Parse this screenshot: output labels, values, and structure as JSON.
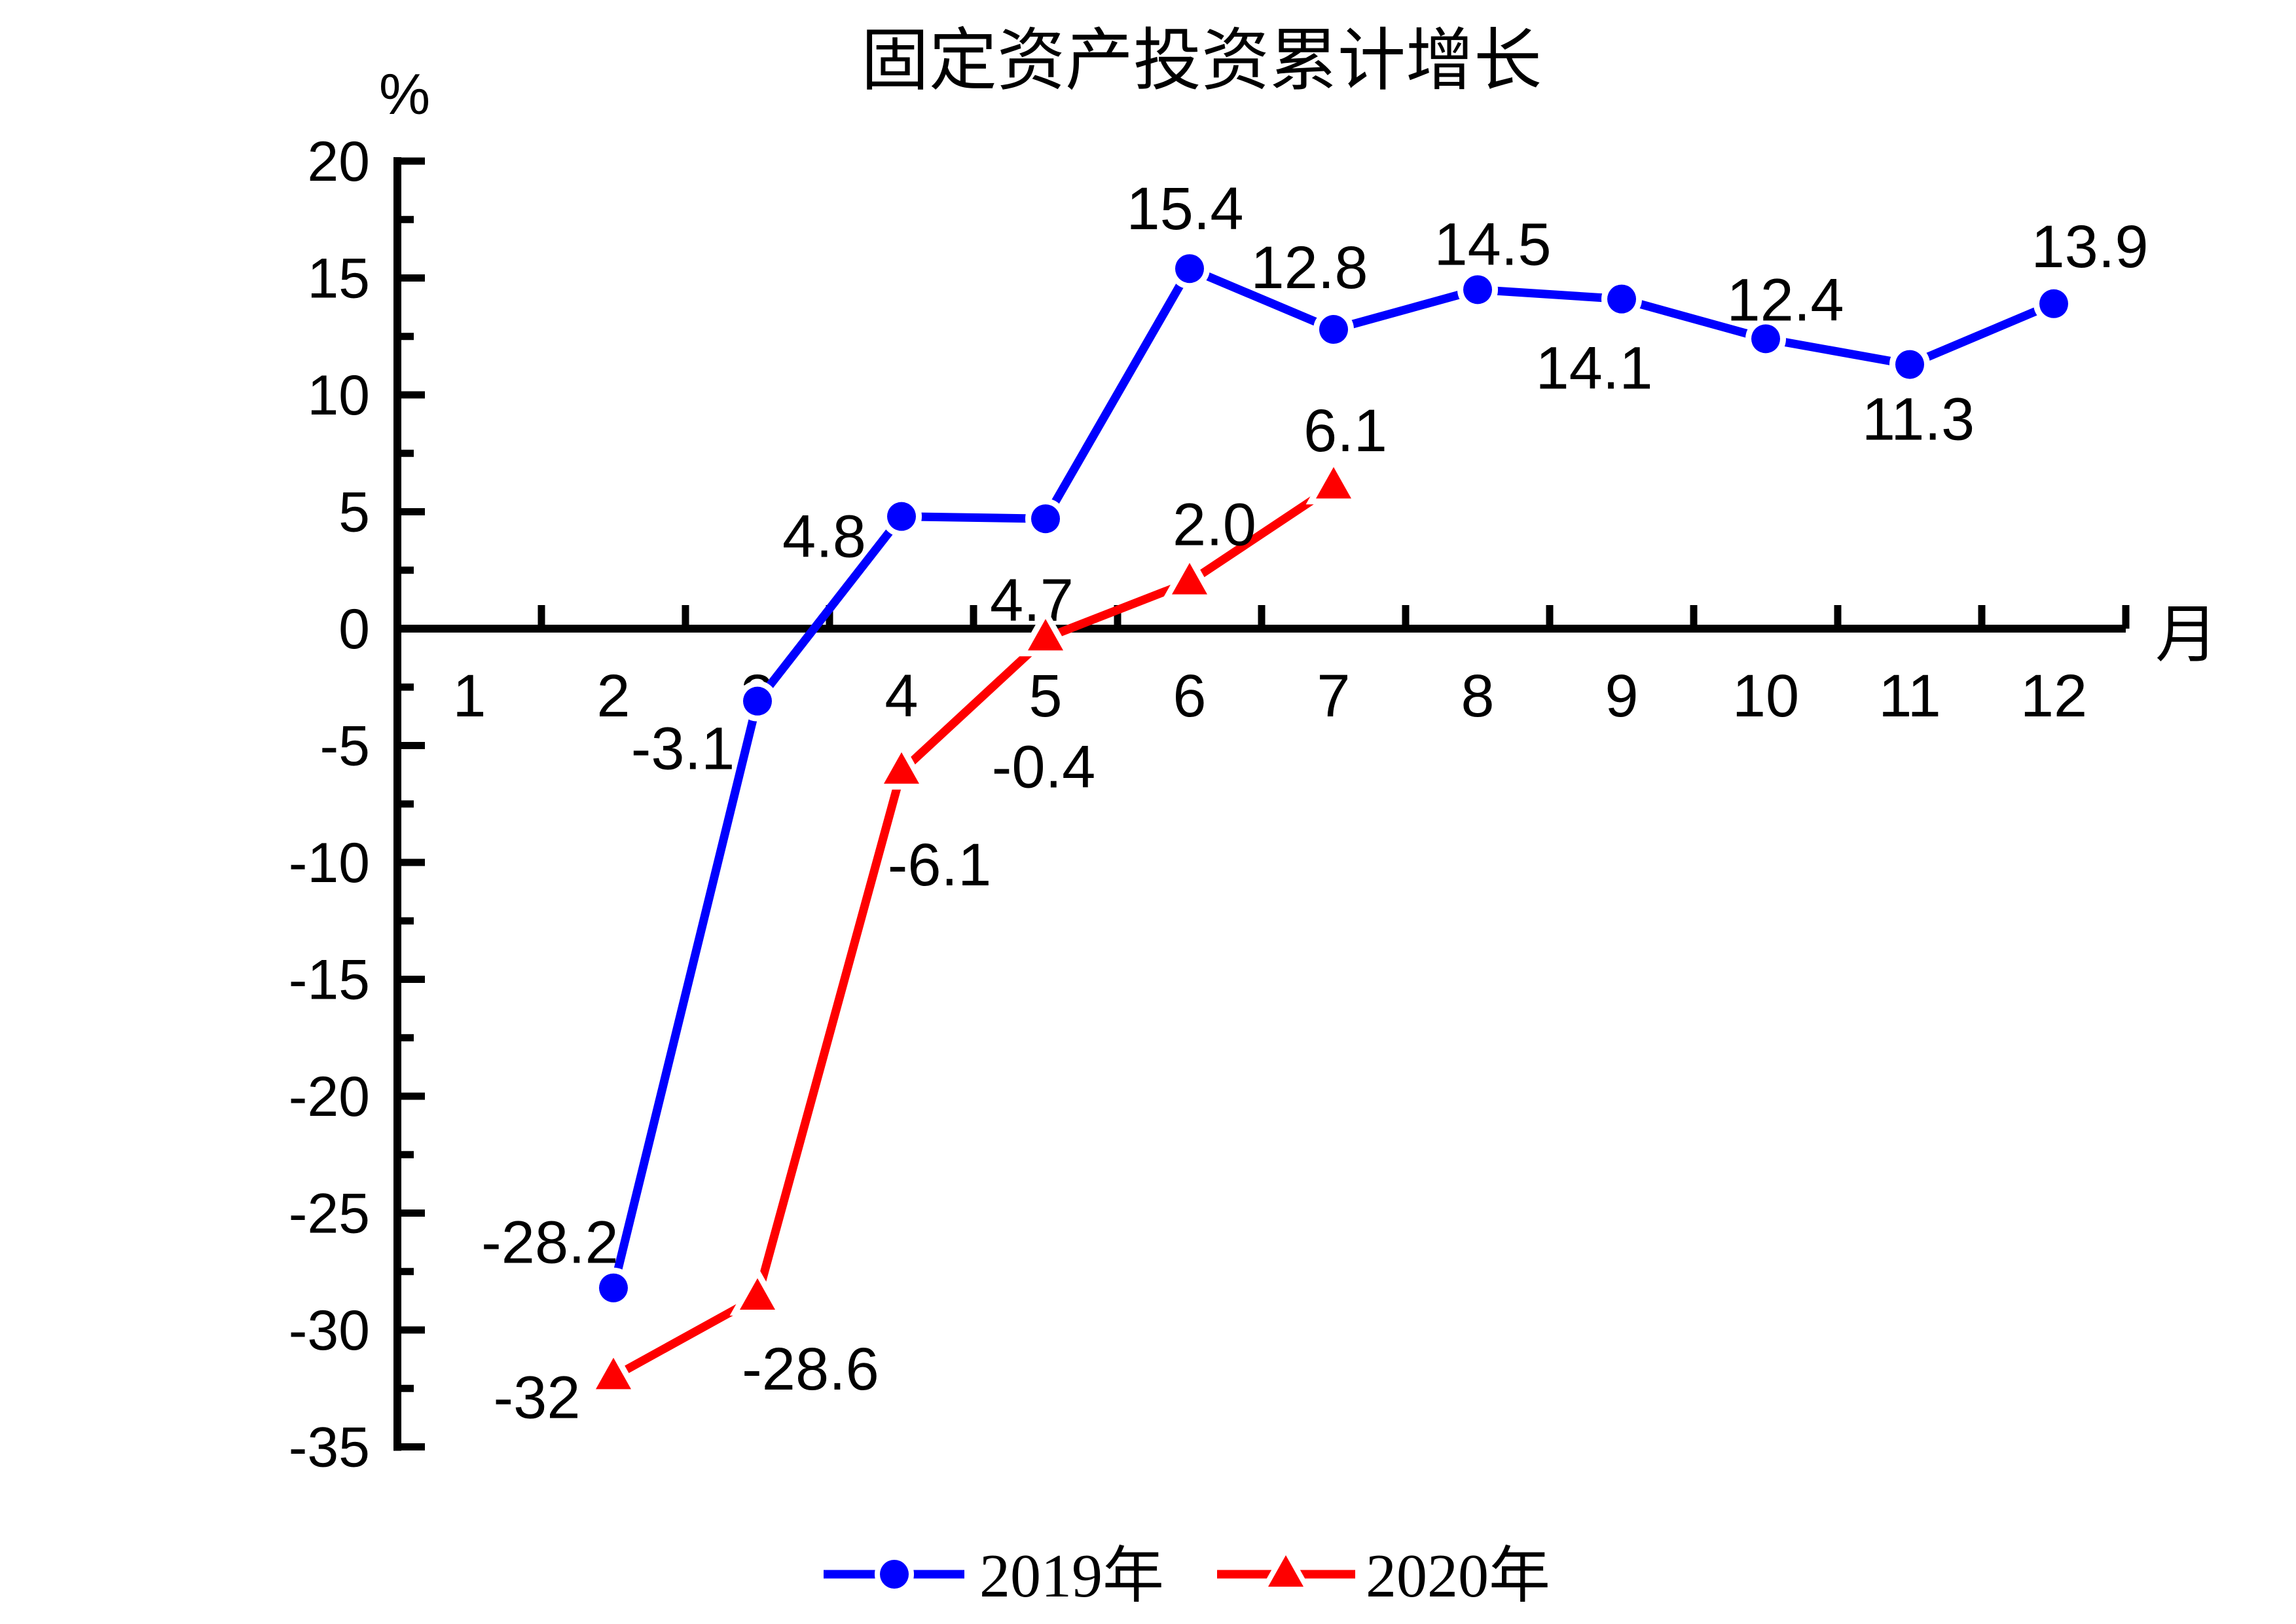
{
  "title": "固定资产投资累计增长",
  "chart_data": {
    "type": "line",
    "title": "固定资产投资累计增长",
    "xlabel": "月",
    "ylabel": "%",
    "x_categories": [
      1,
      2,
      3,
      4,
      5,
      6,
      7,
      8,
      9,
      10,
      11,
      12
    ],
    "ylim": [
      -35,
      20
    ],
    "ytick_major_step": 5,
    "ytick_minor_step": 2.5,
    "grid": false,
    "legend_position": "bottom-center",
    "axis_color": "#000000",
    "background_color": "#ffffff",
    "series": [
      {
        "name": "2019年",
        "color": "#0000fe",
        "marker": "circle",
        "points": [
          {
            "month": 2,
            "value": -28.2,
            "label": "-28.2",
            "label_dx": -97,
            "label_dy": -70
          },
          {
            "month": 3,
            "value": -3.1,
            "label": "-3.1",
            "label_dx": -114,
            "label_dy": 72
          },
          {
            "month": 4,
            "value": 4.8,
            "label": "4.8",
            "label_dx": -118,
            "label_dy": 30
          },
          {
            "month": 5,
            "value": 4.7,
            "label": "4.7",
            "label_dx": -21,
            "label_dy": 124
          },
          {
            "month": 6,
            "value": 15.4,
            "label": "15.4",
            "label_dx": -7,
            "label_dy": -92
          },
          {
            "month": 7,
            "value": 12.8,
            "label": "12.8",
            "label_dx": -37,
            "label_dy": -95
          },
          {
            "month": 8,
            "value": 14.5,
            "label": "14.5",
            "label_dx": 23,
            "label_dy": -70
          },
          {
            "month": 9,
            "value": 14.1,
            "label": "14.1",
            "label_dx": -42,
            "label_dy": 105
          },
          {
            "month": 10,
            "value": 12.4,
            "label": "12.4",
            "label_dx": 30,
            "label_dy": -60
          },
          {
            "month": 11,
            "value": 11.3,
            "label": "11.3",
            "label_dx": 13,
            "label_dy": 83
          },
          {
            "month": 12,
            "value": 13.9,
            "label": "13.9",
            "label_dx": 55,
            "label_dy": -88
          }
        ]
      },
      {
        "name": "2020年",
        "color": "#fe0000",
        "marker": "triangle",
        "points": [
          {
            "month": 2,
            "value": -32,
            "label": "-32",
            "label_dx": -117,
            "label_dy": 31
          },
          {
            "month": 3,
            "value": -28.6,
            "label": "-28.6",
            "label_dx": 81,
            "label_dy": 109
          },
          {
            "month": 4,
            "value": -6.1,
            "label": "-6.1",
            "label_dx": 58,
            "label_dy": 142
          },
          {
            "month": 5,
            "value": -0.4,
            "label": "-0.4",
            "label_dx": -3,
            "label_dy": 196
          },
          {
            "month": 6,
            "value": 2.0,
            "label": "2.0",
            "label_dx": 38,
            "label_dy": -88
          },
          {
            "month": 7,
            "value": 6.1,
            "label": "6.1",
            "label_dx": 18,
            "label_dy": -85
          }
        ]
      }
    ],
    "legend": {
      "items": [
        {
          "label": "2019年"
        },
        {
          "label": "2020年"
        }
      ]
    }
  }
}
